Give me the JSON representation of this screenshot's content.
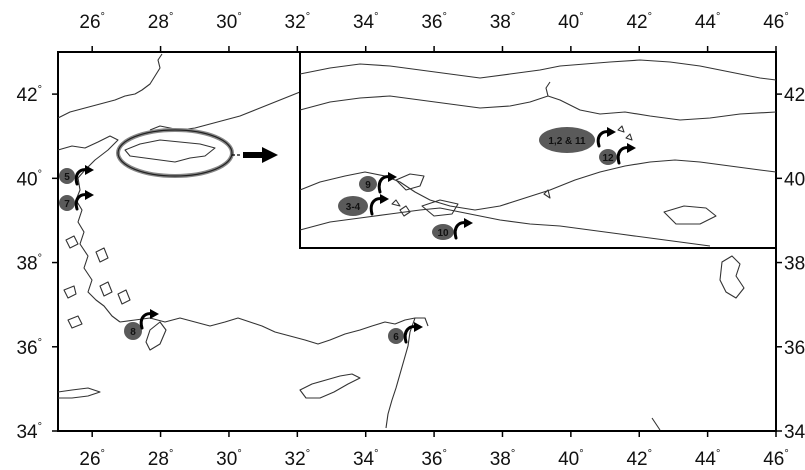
{
  "axes": {
    "x_ticks": [
      26,
      28,
      30,
      32,
      34,
      36,
      38,
      40,
      42,
      44,
      46
    ],
    "y_ticks": [
      34,
      36,
      38,
      40,
      42
    ],
    "degree_symbol": "°"
  },
  "markers": [
    {
      "id": "m-1-2-11",
      "label": "1,2 & 11"
    },
    {
      "id": "m-12",
      "label": "12"
    },
    {
      "id": "m-9",
      "label": "9"
    },
    {
      "id": "m-3-4",
      "label": "3-4"
    },
    {
      "id": "m-10",
      "label": "10"
    },
    {
      "id": "m-5",
      "label": "5"
    },
    {
      "id": "m-7",
      "label": "7"
    },
    {
      "id": "m-8",
      "label": "8"
    },
    {
      "id": "m-6",
      "label": "6"
    }
  ],
  "colors": {
    "marker_fill": "#5a5a5a",
    "coastline": "#333333",
    "frame": "#000000",
    "background": "#ffffff"
  }
}
